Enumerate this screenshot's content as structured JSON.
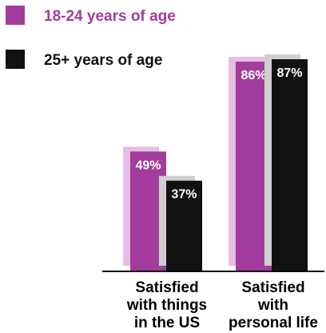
{
  "chart_data": {
    "type": "bar",
    "categories": [
      [
        "Satisfied",
        "with things",
        "in the US"
      ],
      [
        "Satisfied",
        "with",
        "personal life"
      ]
    ],
    "series": [
      {
        "name": "18-24 years of age",
        "color": "#a23c9d",
        "values": [
          49,
          86
        ],
        "labels": [
          "49%",
          "86%"
        ]
      },
      {
        "name": "25+ years of age",
        "color": "#111111",
        "values": [
          37,
          87
        ],
        "labels": [
          "37%",
          "87%"
        ]
      }
    ],
    "ylim": [
      0,
      100
    ],
    "legend_position": "top-left",
    "grid": false
  }
}
